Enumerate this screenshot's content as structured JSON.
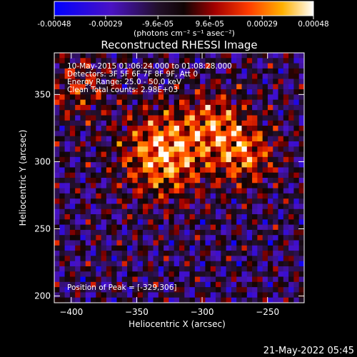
{
  "colorbar": {
    "tick_labels": [
      "-0.00048",
      "-0.00029",
      "-9.6e-05",
      "9.6e-05",
      "0.00029",
      "0.00048"
    ],
    "tick_values": [
      -0.00048,
      -0.00029,
      -9.6e-05,
      9.6e-05,
      0.00029,
      0.00048
    ],
    "range": [
      -0.00048,
      0.00048
    ],
    "units_label": "(photons cm⁻² s⁻¹ asec⁻²)"
  },
  "chart_data": {
    "type": "heatmap",
    "title": "Reconstructed RHESSI Image",
    "xlabel": "Heliocentric X (arcsec)",
    "ylabel": "Heliocentric Y (arcsec)",
    "xlim": [
      -413,
      -222
    ],
    "ylim": [
      195,
      381
    ],
    "x_ticks": [
      -400,
      -350,
      -300,
      -250
    ],
    "y_ticks": [
      200,
      250,
      300,
      350
    ],
    "colormap": "RHESSI blue-purple-red-yellow-white",
    "annotations": [
      "10-May-2015 01:06:24.000 to 01:08:28.000",
      "Detectors: 3F 5F 6F 7F 8F 9F, Att 0",
      "Energy Range: 25.0 - 50.0 keV",
      "Clean     Total counts: 2.98E+03"
    ],
    "peak_label": "Position of Peak = [-329,306]",
    "peak": [
      -329,
      306
    ],
    "bright_sources": [
      {
        "x": -329,
        "y": 306,
        "level": 0.00048
      },
      {
        "x": -268,
        "y": 306,
        "level": 0.00036
      },
      {
        "x": -290,
        "y": 330,
        "level": 0.00028
      },
      {
        "x": -395,
        "y": 355,
        "level": 0.00022
      }
    ]
  },
  "timestamp": "21-May-2022 05:45"
}
